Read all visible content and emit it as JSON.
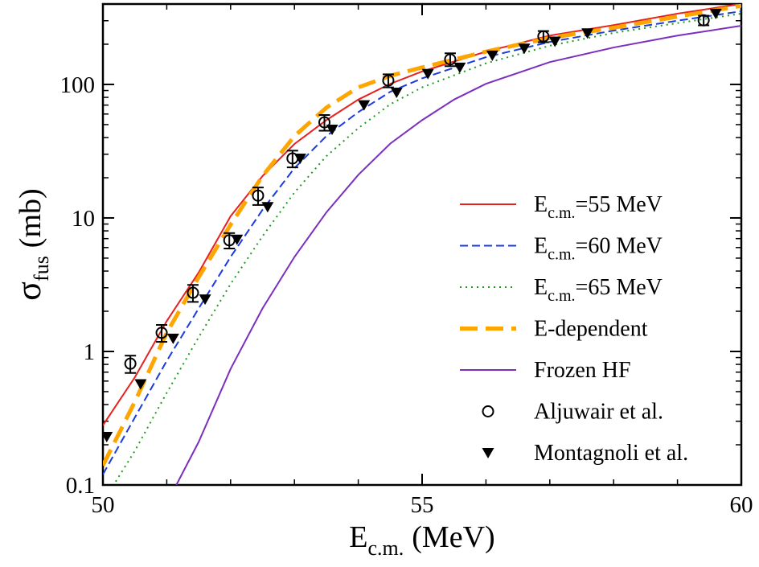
{
  "chart_data": {
    "type": "line",
    "xlabel": [
      "E",
      "c.m.",
      "(MeV)"
    ],
    "ylabel": [
      "σ",
      "fus",
      "(mb)"
    ],
    "xlim": [
      50,
      60
    ],
    "xticks": [
      50,
      55,
      60
    ],
    "xminorticks": [
      51,
      52,
      53,
      54,
      56,
      57,
      58,
      59
    ],
    "ylim": [
      0.1,
      400
    ],
    "yscale": "log",
    "yticks": [
      0.1,
      1,
      10,
      100
    ],
    "yminorticks": [
      0.2,
      0.3,
      0.4,
      0.5,
      0.6,
      0.7,
      0.8,
      0.9,
      2,
      3,
      4,
      5,
      6,
      7,
      8,
      9,
      20,
      30,
      40,
      50,
      60,
      70,
      80,
      90,
      200,
      300,
      400
    ],
    "legend": "lower right",
    "series": [
      {
        "name": [
          "E",
          "c.m.",
          "=55 MeV"
        ],
        "kind": "line",
        "linestyle": "solid",
        "color": "#e8201e",
        "x": [
          50,
          50.5,
          51,
          51.5,
          52,
          52.5,
          53,
          53.5,
          54,
          54.5,
          55,
          56,
          57,
          58,
          59,
          60
        ],
        "values": [
          0.28,
          0.64,
          1.69,
          3.9,
          10.3,
          20.6,
          35.8,
          54,
          77,
          101,
          125,
          176,
          232,
          278,
          339,
          401
        ]
      },
      {
        "name": [
          "E",
          "c.m.",
          "=60 MeV"
        ],
        "kind": "line",
        "linestyle": "dashed",
        "color": "#1a3be0",
        "x": [
          50,
          50.5,
          51,
          51.5,
          52,
          52.5,
          53,
          53.5,
          54,
          54.5,
          55,
          56,
          57,
          58,
          59,
          60
        ],
        "values": [
          0.12,
          0.32,
          0.85,
          2.1,
          5.1,
          11.5,
          23.6,
          41,
          62,
          88,
          111,
          160,
          208,
          253,
          300,
          353
        ]
      },
      {
        "name": [
          "E",
          "c.m.",
          "=65 MeV"
        ],
        "kind": "line",
        "linestyle": "dotted",
        "color": "#1e9a1e",
        "x": [
          50.2,
          50.5,
          51,
          51.5,
          52,
          52.5,
          53,
          53.5,
          54,
          54.5,
          55,
          56,
          57,
          58,
          59,
          60
        ],
        "values": [
          0.106,
          0.18,
          0.49,
          1.28,
          3.2,
          7.3,
          15.5,
          29,
          47,
          71,
          95,
          144,
          195,
          243,
          288,
          339
        ]
      },
      {
        "name": "E-dependent",
        "kind": "line",
        "linestyle": "long-dashed",
        "color": "#ffa500",
        "x": [
          50,
          50.5,
          51,
          51.5,
          52,
          52.5,
          53,
          53.5,
          54,
          54.5,
          55,
          56,
          57,
          58,
          59,
          60
        ],
        "values": [
          0.14,
          0.42,
          1.38,
          3.6,
          8.9,
          20.6,
          41,
          67,
          95,
          116,
          134,
          176,
          223,
          266,
          322,
          388
        ]
      },
      {
        "name": "Frozen HF",
        "kind": "line",
        "linestyle": "solid",
        "color": "#7b2fbe",
        "x": [
          51.15,
          51.5,
          52,
          52.5,
          53,
          53.5,
          54,
          54.5,
          55,
          55.5,
          56,
          57,
          58,
          59,
          60
        ],
        "values": [
          0.1,
          0.21,
          0.74,
          2.1,
          5.1,
          11,
          21,
          36,
          54,
          77,
          101,
          147,
          189,
          232,
          275
        ]
      },
      {
        "name": "Aljuwair et al.",
        "kind": "scatter",
        "marker": "open-circle",
        "color": "#000000",
        "x": [
          50.43,
          50.92,
          51.41,
          51.98,
          52.43,
          52.97,
          53.47,
          54.47,
          55.44,
          56.9,
          59.41
        ],
        "values": [
          0.81,
          1.38,
          2.75,
          6.8,
          14.7,
          27.9,
          52,
          107,
          154,
          229,
          302
        ],
        "errors": [
          0.12,
          0.2,
          0.4,
          0.9,
          2.2,
          4,
          7,
          12,
          17,
          22,
          25
        ]
      },
      {
        "name": "Montagnoli et al.",
        "kind": "scatter",
        "marker": "triangle-down",
        "color": "#000000",
        "x": [
          50.06,
          50.59,
          51.1,
          51.6,
          52.1,
          52.58,
          53.09,
          53.59,
          54.09,
          54.6,
          55.09,
          55.59,
          56.1,
          56.6,
          57.08,
          57.59,
          59.6
        ],
        "values": [
          0.23,
          0.57,
          1.25,
          2.46,
          6.9,
          12.1,
          27.9,
          46,
          70,
          87,
          120,
          134,
          165,
          186,
          210,
          242,
          339
        ]
      }
    ]
  }
}
